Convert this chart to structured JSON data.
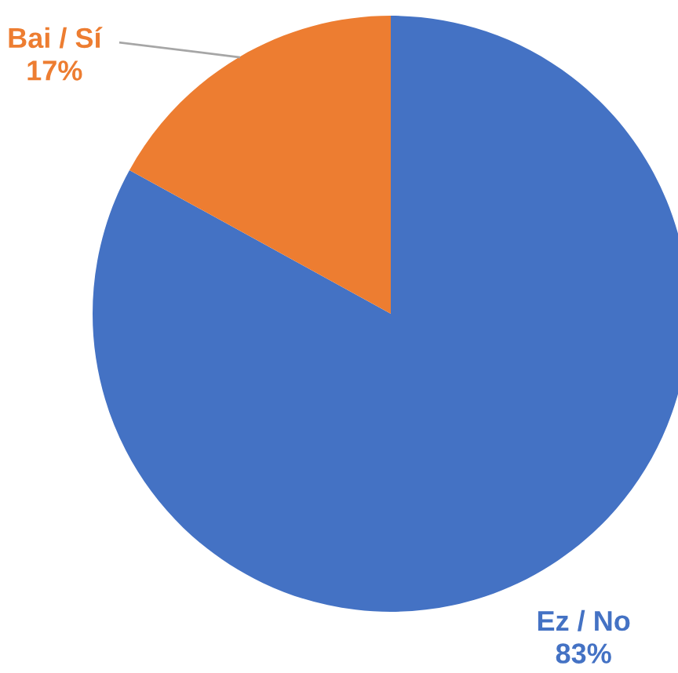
{
  "chart_data": {
    "type": "pie",
    "categories": [
      "Ez / No",
      "Bai / Sí"
    ],
    "values": [
      83,
      17
    ],
    "colors": [
      "#4472c4",
      "#ed7d31"
    ],
    "value_labels": [
      "83%",
      "17%"
    ],
    "legend": false
  }
}
